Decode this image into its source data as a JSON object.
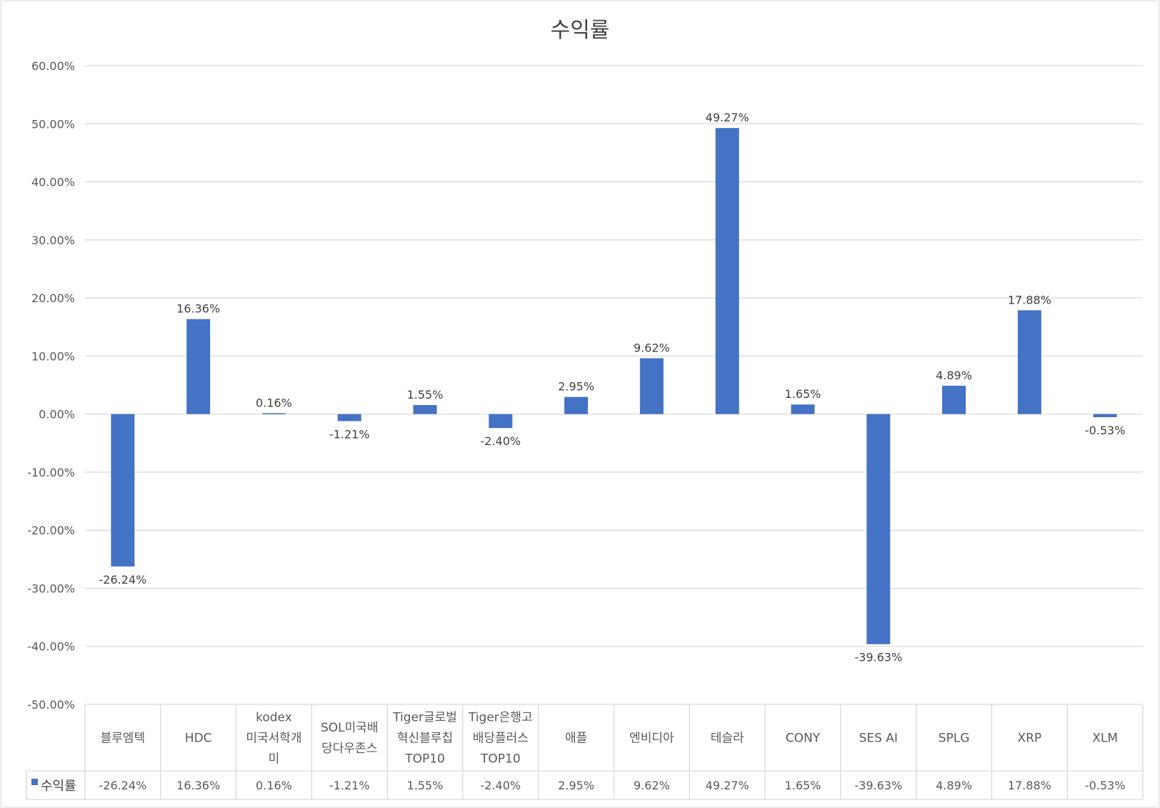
{
  "chart_data": {
    "type": "bar",
    "title": "수익률",
    "categories": [
      [
        "블루엠텍"
      ],
      [
        "HDC"
      ],
      [
        "kodex",
        "미국서학개",
        "미"
      ],
      [
        "SOL미국배",
        "당다우존스"
      ],
      [
        "Tiger글로벌",
        "혁신블루칩",
        "TOP10"
      ],
      [
        "Tiger은행고",
        "배당플러스",
        "TOP10"
      ],
      [
        "애플"
      ],
      [
        "엔비디아"
      ],
      [
        "테슬라"
      ],
      [
        "CONY"
      ],
      [
        "SES AI"
      ],
      [
        "SPLG"
      ],
      [
        "XRP"
      ],
      [
        "XLM"
      ]
    ],
    "series": [
      {
        "name": "수익률",
        "color": "#4472c4",
        "values": [
          -26.24,
          16.36,
          0.16,
          -1.21,
          1.55,
          -2.4,
          2.95,
          9.62,
          49.27,
          1.65,
          -39.63,
          4.89,
          17.88,
          -0.53
        ],
        "labels": [
          "-26.24%",
          "16.36%",
          "0.16%",
          "-1.21%",
          "1.55%",
          "-2.40%",
          "2.95%",
          "9.62%",
          "49.27%",
          "1.65%",
          "-39.63%",
          "4.89%",
          "17.88%",
          "-0.53%"
        ]
      }
    ],
    "ylim": [
      -50,
      60
    ],
    "y_ticks": [
      "60.00%",
      "50.00%",
      "40.00%",
      "30.00%",
      "20.00%",
      "10.00%",
      "0.00%",
      "-10.00%",
      "-20.00%",
      "-30.00%",
      "-40.00%",
      "-50.00%"
    ],
    "y_tick_values": [
      60,
      50,
      40,
      30,
      20,
      10,
      0,
      -10,
      -20,
      -30,
      -40,
      -50
    ],
    "grid": true,
    "legend": "data-table",
    "data_table": true,
    "colors": {
      "gridline": "#d9d9d9",
      "axis_text": "#595959",
      "border": "#d9d9d9"
    }
  }
}
